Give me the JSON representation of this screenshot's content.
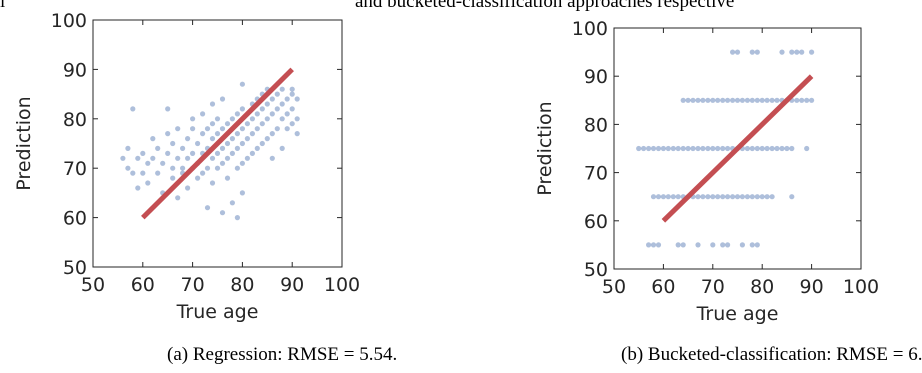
{
  "header": {
    "fragment": "l",
    "text": "and bucketed-classification approaches respective"
  },
  "captions": [
    "(a) Regression: RMSE = 5.54.",
    "(b) Bucketed-classification: RMSE = 6."
  ],
  "colors": {
    "points": "#4c72b0",
    "ideal_line": "#c44e52",
    "axes": "#262626"
  },
  "chart_data": [
    {
      "type": "scatter",
      "title": "",
      "xlabel": "True age",
      "ylabel": "Prediction",
      "xlim": [
        50,
        100
      ],
      "ylim": [
        50,
        100
      ],
      "xticks": [
        50,
        60,
        70,
        80,
        90,
        100
      ],
      "yticks": [
        50,
        60,
        70,
        80,
        90,
        100
      ],
      "grid": false,
      "ideal_line": {
        "x": [
          60,
          90
        ],
        "y": [
          60,
          90
        ]
      },
      "points": [
        [
          56,
          72
        ],
        [
          57,
          74
        ],
        [
          57,
          70
        ],
        [
          58,
          69
        ],
        [
          58,
          82
        ],
        [
          59,
          72
        ],
        [
          59,
          66
        ],
        [
          60,
          73
        ],
        [
          60,
          69
        ],
        [
          61,
          71
        ],
        [
          61,
          67
        ],
        [
          62,
          76
        ],
        [
          62,
          72
        ],
        [
          63,
          69
        ],
        [
          63,
          74
        ],
        [
          64,
          71
        ],
        [
          64,
          65
        ],
        [
          65,
          73
        ],
        [
          65,
          77
        ],
        [
          66,
          70
        ],
        [
          66,
          68
        ],
        [
          66,
          75
        ],
        [
          67,
          72
        ],
        [
          67,
          64
        ],
        [
          67,
          78
        ],
        [
          68,
          74
        ],
        [
          68,
          70
        ],
        [
          68,
          69
        ],
        [
          69,
          76
        ],
        [
          69,
          72
        ],
        [
          69,
          66
        ],
        [
          70,
          73
        ],
        [
          70,
          80
        ],
        [
          70,
          70
        ],
        [
          71,
          75
        ],
        [
          71,
          71
        ],
        [
          71,
          68
        ],
        [
          72,
          77
        ],
        [
          72,
          73
        ],
        [
          72,
          69
        ],
        [
          72,
          81
        ],
        [
          73,
          74
        ],
        [
          73,
          70
        ],
        [
          73,
          78
        ],
        [
          73,
          62
        ],
        [
          74,
          76
        ],
        [
          74,
          72
        ],
        [
          74,
          83
        ],
        [
          74,
          67
        ],
        [
          75,
          77
        ],
        [
          75,
          73
        ],
        [
          75,
          70
        ],
        [
          75,
          80
        ],
        [
          76,
          78
        ],
        [
          76,
          74
        ],
        [
          76,
          71
        ],
        [
          76,
          84
        ],
        [
          77,
          79
        ],
        [
          77,
          75
        ],
        [
          77,
          72
        ],
        [
          77,
          68
        ],
        [
          78,
          80
        ],
        [
          78,
          76
        ],
        [
          78,
          73
        ],
        [
          78,
          63
        ],
        [
          79,
          81
        ],
        [
          79,
          77
        ],
        [
          79,
          74
        ],
        [
          79,
          70
        ],
        [
          80,
          82
        ],
        [
          80,
          78
        ],
        [
          80,
          75
        ],
        [
          80,
          71
        ],
        [
          80,
          87
        ],
        [
          81,
          79
        ],
        [
          81,
          76
        ],
        [
          81,
          72
        ],
        [
          82,
          83
        ],
        [
          82,
          80
        ],
        [
          82,
          77
        ],
        [
          82,
          73
        ],
        [
          83,
          84
        ],
        [
          83,
          81
        ],
        [
          83,
          78
        ],
        [
          83,
          74
        ],
        [
          84,
          85
        ],
        [
          84,
          82
        ],
        [
          84,
          79
        ],
        [
          84,
          75
        ],
        [
          85,
          83
        ],
        [
          85,
          80
        ],
        [
          85,
          76
        ],
        [
          85,
          86
        ],
        [
          86,
          84
        ],
        [
          86,
          81
        ],
        [
          86,
          77
        ],
        [
          87,
          85
        ],
        [
          87,
          82
        ],
        [
          87,
          78
        ],
        [
          88,
          83
        ],
        [
          88,
          80
        ],
        [
          88,
          86
        ],
        [
          89,
          84
        ],
        [
          89,
          81
        ],
        [
          89,
          78
        ],
        [
          90,
          85
        ],
        [
          90,
          82
        ],
        [
          90,
          79
        ],
        [
          90,
          86
        ],
        [
          91,
          84
        ],
        [
          91,
          80
        ],
        [
          91,
          77
        ],
        [
          79,
          60
        ],
        [
          76,
          61
        ],
        [
          80,
          65
        ],
        [
          88,
          74
        ],
        [
          70,
          78
        ],
        [
          65,
          82
        ],
        [
          86,
          72
        ],
        [
          74,
          79
        ]
      ]
    },
    {
      "type": "scatter",
      "title": "",
      "xlabel": "True age",
      "ylabel": "Prediction",
      "xlim": [
        50,
        100
      ],
      "ylim": [
        50,
        100
      ],
      "xticks": [
        50,
        60,
        70,
        80,
        90,
        100
      ],
      "yticks": [
        50,
        60,
        70,
        80,
        90,
        100
      ],
      "grid": false,
      "ideal_line": {
        "x": [
          60,
          90
        ],
        "y": [
          60,
          90
        ]
      },
      "points": [
        [
          57,
          55
        ],
        [
          58,
          55
        ],
        [
          59,
          55
        ],
        [
          63,
          55
        ],
        [
          64,
          55
        ],
        [
          67,
          55
        ],
        [
          70,
          55
        ],
        [
          72,
          55
        ],
        [
          73,
          55
        ],
        [
          76,
          55
        ],
        [
          78,
          55
        ],
        [
          79,
          55
        ],
        [
          58,
          65
        ],
        [
          59,
          65
        ],
        [
          60,
          65
        ],
        [
          61,
          65
        ],
        [
          62,
          65
        ],
        [
          63,
          65
        ],
        [
          64,
          65
        ],
        [
          65,
          65
        ],
        [
          66,
          65
        ],
        [
          67,
          65
        ],
        [
          68,
          65
        ],
        [
          69,
          65
        ],
        [
          70,
          65
        ],
        [
          71,
          65
        ],
        [
          72,
          65
        ],
        [
          73,
          65
        ],
        [
          74,
          65
        ],
        [
          75,
          65
        ],
        [
          76,
          65
        ],
        [
          77,
          65
        ],
        [
          78,
          65
        ],
        [
          79,
          65
        ],
        [
          80,
          65
        ],
        [
          81,
          65
        ],
        [
          82,
          65
        ],
        [
          86,
          65
        ],
        [
          55,
          75
        ],
        [
          56,
          75
        ],
        [
          57,
          75
        ],
        [
          58,
          75
        ],
        [
          59,
          75
        ],
        [
          60,
          75
        ],
        [
          61,
          75
        ],
        [
          62,
          75
        ],
        [
          63,
          75
        ],
        [
          64,
          75
        ],
        [
          65,
          75
        ],
        [
          66,
          75
        ],
        [
          67,
          75
        ],
        [
          68,
          75
        ],
        [
          69,
          75
        ],
        [
          70,
          75
        ],
        [
          71,
          75
        ],
        [
          72,
          75
        ],
        [
          73,
          75
        ],
        [
          74,
          75
        ],
        [
          75,
          75
        ],
        [
          76,
          75
        ],
        [
          77,
          75
        ],
        [
          78,
          75
        ],
        [
          79,
          75
        ],
        [
          80,
          75
        ],
        [
          81,
          75
        ],
        [
          82,
          75
        ],
        [
          83,
          75
        ],
        [
          84,
          75
        ],
        [
          85,
          75
        ],
        [
          86,
          75
        ],
        [
          89,
          75
        ],
        [
          64,
          85
        ],
        [
          65,
          85
        ],
        [
          66,
          85
        ],
        [
          67,
          85
        ],
        [
          68,
          85
        ],
        [
          69,
          85
        ],
        [
          70,
          85
        ],
        [
          71,
          85
        ],
        [
          72,
          85
        ],
        [
          73,
          85
        ],
        [
          74,
          85
        ],
        [
          75,
          85
        ],
        [
          76,
          85
        ],
        [
          77,
          85
        ],
        [
          78,
          85
        ],
        [
          79,
          85
        ],
        [
          80,
          85
        ],
        [
          81,
          85
        ],
        [
          82,
          85
        ],
        [
          83,
          85
        ],
        [
          84,
          85
        ],
        [
          85,
          85
        ],
        [
          86,
          85
        ],
        [
          87,
          85
        ],
        [
          88,
          85
        ],
        [
          89,
          85
        ],
        [
          90,
          85
        ],
        [
          74,
          95
        ],
        [
          75,
          95
        ],
        [
          78,
          95
        ],
        [
          79,
          95
        ],
        [
          84,
          95
        ],
        [
          86,
          95
        ],
        [
          87,
          95
        ],
        [
          88,
          95
        ],
        [
          90,
          95
        ]
      ]
    }
  ]
}
